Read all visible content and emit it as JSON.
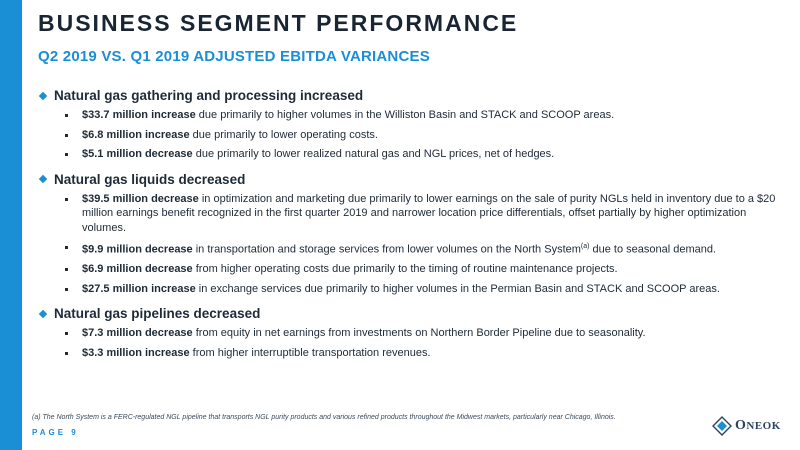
{
  "title": "BUSINESS SEGMENT PERFORMANCE",
  "subtitle": "Q2 2019 VS. Q1 2019 ADJUSTED EBITDA VARIANCES",
  "sections": [
    {
      "heading": "Natural gas gathering and processing increased",
      "bullets": [
        {
          "bold": "$33.7 million increase",
          "text": " due primarily to higher volumes in the Williston Basin and STACK and SCOOP areas."
        },
        {
          "bold": "$6.8 million increase",
          "text": " due primarily to lower operating costs."
        },
        {
          "bold": "$5.1 million decrease",
          "text": " due primarily to lower realized natural gas and NGL prices, net of hedges."
        }
      ]
    },
    {
      "heading": "Natural gas liquids decreased",
      "bullets": [
        {
          "bold": "$39.5 million decrease",
          "text": " in optimization and marketing due primarily to lower earnings on the sale of purity NGLs held in inventory due to a $20 million earnings benefit recognized in the first quarter 2019 and narrower location price differentials, offset partially by higher optimization volumes."
        },
        {
          "bold": "$9.9 million decrease",
          "text": " in transportation and storage services from lower volumes on the North System",
          "sup": "(a)",
          "text_after": " due to seasonal demand."
        },
        {
          "bold": "$6.9 million decrease",
          "text": " from higher operating costs due primarily to the timing of routine maintenance projects."
        },
        {
          "bold": "$27.5 million increase",
          "text": " in exchange services due primarily to higher volumes in the Permian Basin and STACK and SCOOP areas."
        }
      ]
    },
    {
      "heading": "Natural gas pipelines decreased",
      "bullets": [
        {
          "bold": "$7.3 million decrease",
          "text": " from equity in net earnings from investments on Northern Border Pipeline due to seasonality."
        },
        {
          "bold": "$3.3 million increase",
          "text": " from higher interruptible transportation revenues."
        }
      ]
    }
  ],
  "footnote": "(a) The North System is a FERC-regulated NGL pipeline that transports NGL purity products and various refined products throughout the Midwest markets, particularly near Chicago, Illinois.",
  "page_label": "PAGE 9",
  "logo": {
    "initial": "O",
    "rest": "NEOK"
  },
  "colors": {
    "accent": "#1a8fd6",
    "text": "#1e2a36"
  }
}
